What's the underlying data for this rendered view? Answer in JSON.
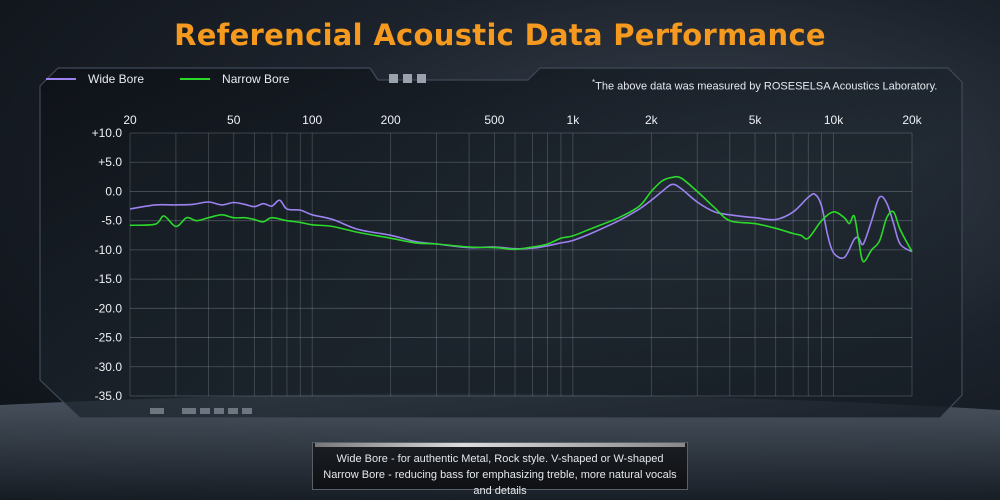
{
  "title": "Referencial Acoustic Data Performance",
  "note_mark": "*",
  "note": "The above data was measured by ROSESELSA Acoustics Laboratory.",
  "footer": {
    "line1": "Wide Bore - for authentic Metal, Rock style. V-shaped or W-shaped",
    "line2": "Narrow Bore - reducing bass for emphasizing treble, more natural vocals and details"
  },
  "colors": {
    "title": "#f59a1e",
    "wide": "#9b82f0",
    "narrow": "#2bd92b"
  },
  "chart_data": {
    "type": "line",
    "title": "Referencial Acoustic Data Performance",
    "xscale": "log",
    "xlim": [
      20,
      20000
    ],
    "ylim": [
      -35,
      10
    ],
    "x_tick_values": [
      20,
      50,
      100,
      200,
      500,
      1000,
      2000,
      5000,
      10000,
      20000
    ],
    "x_tick_labels": [
      "20",
      "50",
      "100",
      "200",
      "500",
      "1k",
      "2k",
      "5k",
      "10k",
      "20k"
    ],
    "y_tick_values": [
      10,
      5,
      0,
      -5,
      -10,
      -15,
      -20,
      -25,
      -30,
      -35
    ],
    "y_tick_labels": [
      "+10.0",
      "+5.0",
      "0.0",
      "-5.0",
      "-10.0",
      "-15.0",
      "-20.0",
      "-25.0",
      "-30.0",
      "-35.0"
    ],
    "grid": true,
    "legend_position": "top-left",
    "series": [
      {
        "name": "Wide Bore",
        "color": "#9b82f0",
        "x": [
          20,
          25,
          30,
          35,
          40,
          45,
          50,
          55,
          60,
          65,
          70,
          75,
          80,
          90,
          100,
          120,
          150,
          200,
          250,
          300,
          400,
          500,
          600,
          700,
          800,
          900,
          1000,
          1200,
          1500,
          1800,
          2000,
          2200,
          2400,
          2600,
          3000,
          3500,
          4000,
          5000,
          6000,
          7000,
          8000,
          8500,
          9000,
          9500,
          10000,
          11000,
          12000,
          12500,
          13000,
          14000,
          15000,
          16000,
          17000,
          18000,
          20000
        ],
        "y": [
          -3.0,
          -2.3,
          -2.3,
          -2.2,
          -1.8,
          -2.3,
          -1.9,
          -2.2,
          -2.6,
          -2.1,
          -2.5,
          -1.5,
          -3.0,
          -3.2,
          -4.0,
          -4.8,
          -6.5,
          -7.5,
          -8.6,
          -9.0,
          -9.6,
          -9.5,
          -9.8,
          -9.7,
          -9.3,
          -8.8,
          -8.4,
          -7.0,
          -5.0,
          -3.0,
          -1.5,
          0.0,
          1.2,
          0.5,
          -1.8,
          -3.5,
          -4.0,
          -4.5,
          -4.8,
          -3.5,
          -1.0,
          -0.5,
          -2.5,
          -7.5,
          -10.5,
          -11.3,
          -8.2,
          -8.0,
          -9.0,
          -5.0,
          -1.0,
          -2.0,
          -5.5,
          -9.0,
          -10.3
        ]
      },
      {
        "name": "Narrow Bore",
        "color": "#2bd92b",
        "x": [
          20,
          25,
          27,
          30,
          33,
          36,
          40,
          45,
          50,
          55,
          60,
          65,
          70,
          80,
          90,
          100,
          120,
          150,
          200,
          250,
          300,
          400,
          500,
          600,
          700,
          800,
          900,
          1000,
          1200,
          1500,
          1800,
          2000,
          2200,
          2400,
          2600,
          3000,
          3500,
          4000,
          5000,
          6000,
          7000,
          7500,
          8000,
          9000,
          10000,
          11000,
          11500,
          12000,
          12500,
          13000,
          14000,
          15000,
          16000,
          17000,
          18000,
          20000
        ],
        "y": [
          -5.8,
          -5.6,
          -4.2,
          -6.0,
          -4.5,
          -5.0,
          -4.5,
          -4.0,
          -4.5,
          -4.5,
          -4.8,
          -5.2,
          -4.5,
          -5.0,
          -5.3,
          -5.7,
          -6.0,
          -7.0,
          -8.0,
          -8.8,
          -9.0,
          -9.5,
          -9.6,
          -9.9,
          -9.5,
          -9.0,
          -8.0,
          -7.6,
          -6.2,
          -4.5,
          -2.5,
          0.0,
          1.8,
          2.4,
          2.3,
          0.0,
          -2.8,
          -5.0,
          -5.5,
          -6.3,
          -7.2,
          -7.5,
          -8.0,
          -5.0,
          -3.5,
          -4.5,
          -5.5,
          -4.2,
          -8.5,
          -12.0,
          -10.0,
          -8.5,
          -4.5,
          -3.5,
          -6.5,
          -10.3
        ]
      }
    ]
  }
}
